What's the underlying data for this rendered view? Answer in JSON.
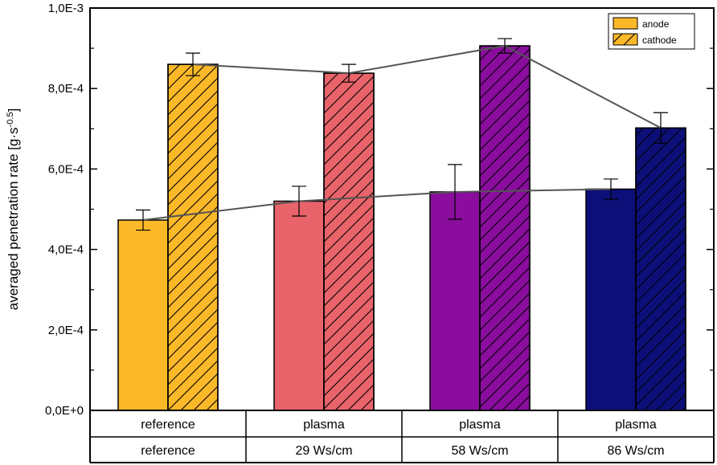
{
  "chart_data": {
    "type": "bar",
    "ylabel": "averaged penetration rate [g·s",
    "ylabel_exponent": "-0.5",
    "ylabel_close": "]",
    "ylim": [
      0,
      0.001
    ],
    "y_ticks": [
      0,
      0.0002,
      0.0004,
      0.0006,
      0.0008,
      0.001
    ],
    "y_tick_labels": [
      "0,0E+0",
      "2,0E-4",
      "4,0E-4",
      "6,0E-4",
      "8,0E-4",
      "1,0E-3"
    ],
    "categories": [
      {
        "line1": "reference",
        "line2": "reference",
        "color": "#FBB829"
      },
      {
        "line1": "plasma",
        "line2": "29 Ws/cm",
        "color": "#E8646A"
      },
      {
        "line1": "plasma",
        "line2": "58 Ws/cm",
        "color": "#8A0D9E"
      },
      {
        "line1": "plasma",
        "line2": "86 Ws/cm",
        "color": "#0D0F78"
      }
    ],
    "series": [
      {
        "name": "anode",
        "hatched": false,
        "values": [
          0.000473,
          0.00052,
          0.000543,
          0.00055
        ],
        "errors": [
          2.5e-05,
          3.7e-05,
          6.8e-05,
          2.5e-05
        ]
      },
      {
        "name": "cathode",
        "hatched": true,
        "values": [
          0.00086,
          0.000838,
          0.000906,
          0.000702
        ],
        "errors": [
          2.8e-05,
          2.2e-05,
          1.8e-05,
          3.8e-05
        ]
      }
    ],
    "legend_position": "top-right",
    "trend_line_color": "#555555",
    "legend_colors": {
      "anode": "#FBB829",
      "cathode": "#FBB829"
    }
  }
}
